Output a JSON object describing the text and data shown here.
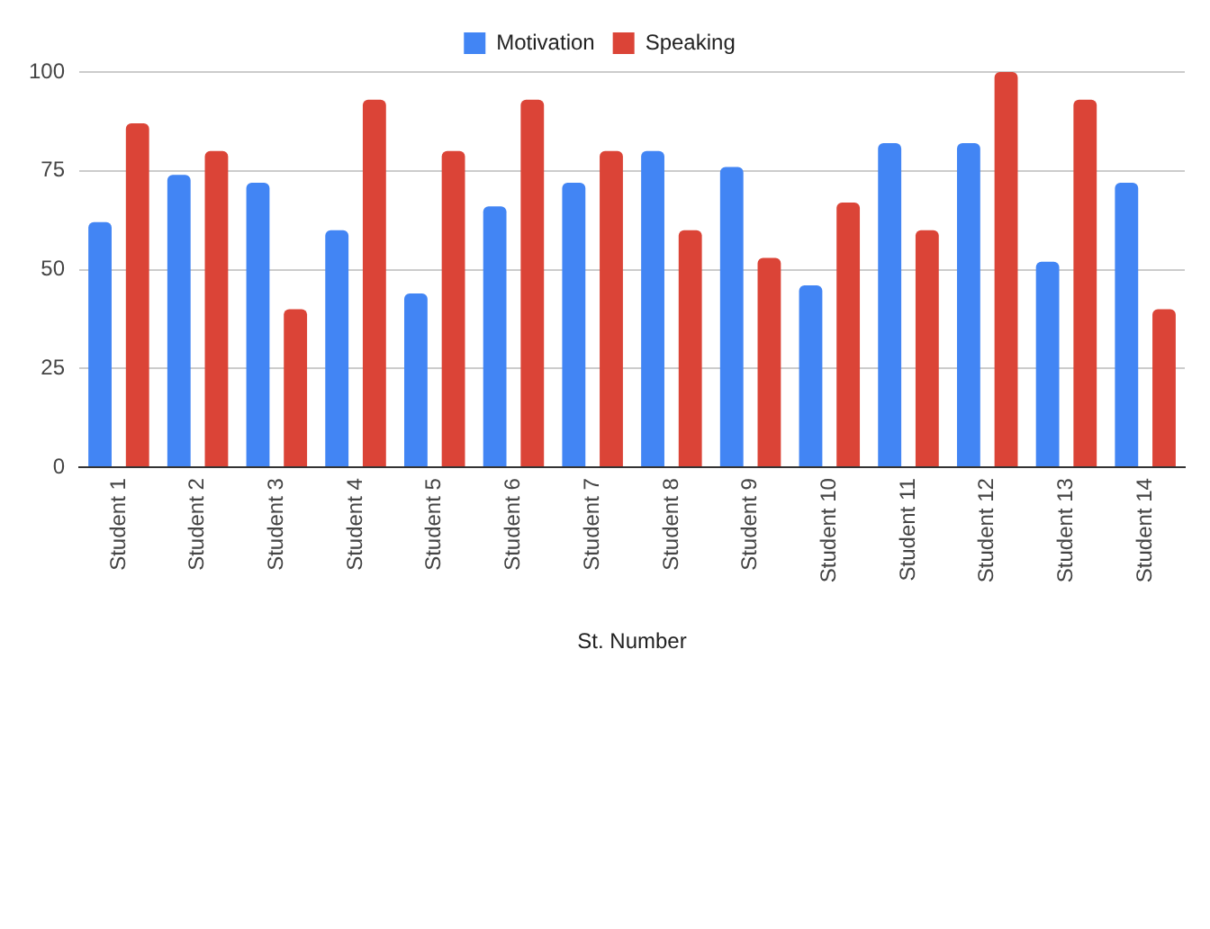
{
  "chart_data": {
    "type": "bar",
    "xlabel": "St. Number",
    "categories": [
      "Student 1",
      "Student 2",
      "Student 3",
      "Student 4",
      "Student 5",
      "Student 6",
      "Student 7",
      "Student 8",
      "Student 9",
      "Student 10",
      "Student 11",
      "Student 12",
      "Student 13",
      "Student 14"
    ],
    "series": [
      {
        "name": "Motivation",
        "color": "#4285f4",
        "values": [
          62,
          74,
          72,
          60,
          44,
          66,
          72,
          80,
          76,
          46,
          82,
          82,
          52,
          72
        ]
      },
      {
        "name": "Speaking",
        "color": "#db4437",
        "values": [
          87,
          80,
          40,
          93,
          80,
          93,
          80,
          60,
          53,
          67,
          60,
          100,
          93,
          40
        ]
      }
    ],
    "ylim": [
      0,
      100
    ],
    "yticks": [
      0,
      25,
      50,
      75,
      100
    ],
    "grid": "y",
    "legend": "top"
  }
}
